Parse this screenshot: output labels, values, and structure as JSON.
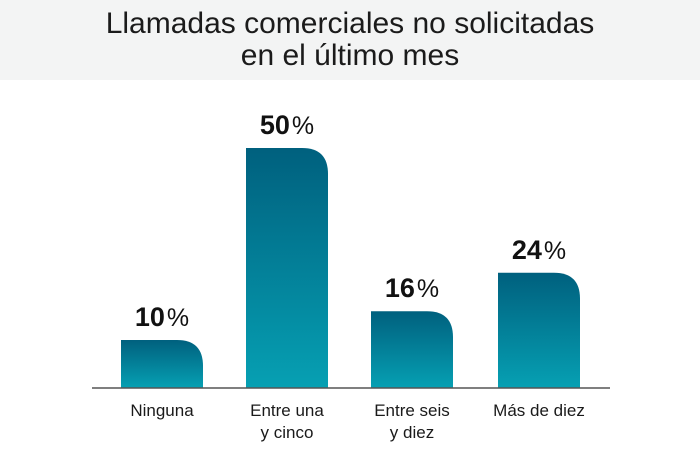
{
  "title_lines": [
    "Llamadas comerciales no solicitadas",
    "en el último mes"
  ],
  "colors": {
    "bar_top": "#00607e",
    "bar_bottom": "#06a0b3",
    "axis": "#555555",
    "title_band": "#f3f4f4"
  },
  "chart_data": {
    "type": "bar",
    "title": "Llamadas comerciales no solicitadas en el último mes",
    "categories": [
      [
        "Ninguna"
      ],
      [
        "Entre una",
        "y cinco"
      ],
      [
        "Entre seis",
        "y diez"
      ],
      [
        "Más de diez"
      ]
    ],
    "values": [
      10,
      50,
      16,
      24
    ],
    "value_suffix": "%",
    "ylim": [
      0,
      50
    ],
    "grid": false,
    "legend": "none"
  }
}
